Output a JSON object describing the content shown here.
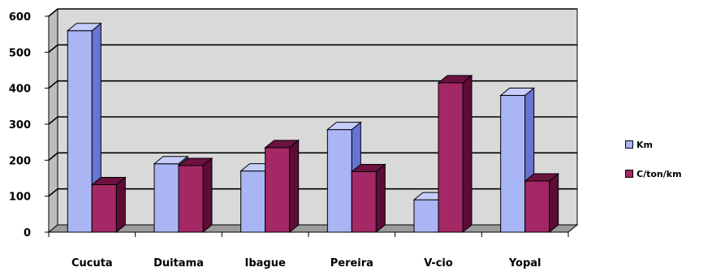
{
  "chart_data": {
    "type": "bar",
    "title": "",
    "xlabel": "",
    "ylabel": "",
    "categories": [
      "Cucuta",
      "Duitama",
      "Ibague",
      "Pereira",
      "V-cio",
      "Yopal"
    ],
    "series": [
      {
        "name": "Km",
        "values": [
          560,
          190,
          170,
          285,
          90,
          380
        ],
        "color": "#aab5f5",
        "side_color": "#6874d4",
        "top_color": "#c6cdfa"
      },
      {
        "name": "C/ton/km",
        "values": [
          132,
          185,
          235,
          168,
          415,
          142
        ],
        "color": "#a52866",
        "side_color": "#5c0c36",
        "top_color": "#6b1240"
      }
    ],
    "ylim": [
      0,
      600
    ],
    "yticks": [
      0,
      100,
      200,
      300,
      400,
      500,
      600
    ],
    "grid": true,
    "legend_position": "right",
    "three_d": true,
    "wall_color": "#d9d9d9"
  }
}
